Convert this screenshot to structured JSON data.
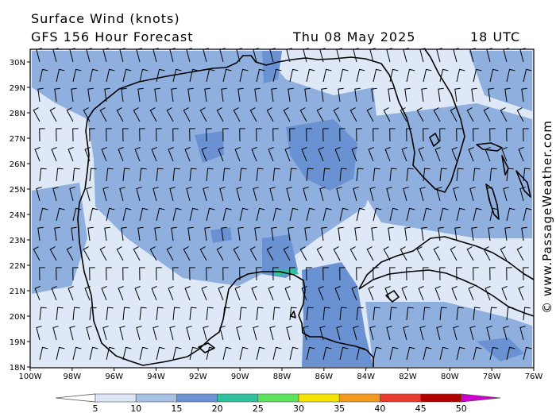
{
  "header": {
    "title": "Surface Wind (knots)",
    "subtitle": "GFS 156 Hour Forecast",
    "valid_date": "Thu 08 May 2025",
    "valid_time": "18 UTC"
  },
  "credit": "© www.PassageWeather.com",
  "map": {
    "lat_labels": [
      "30N",
      "29N",
      "28N",
      "27N",
      "26N",
      "25N",
      "24N",
      "23N",
      "22N",
      "21N",
      "20N",
      "19N",
      "18N"
    ],
    "lon_labels": [
      "100W",
      "98W",
      "96W",
      "94W",
      "92W",
      "90W",
      "88W",
      "86W",
      "84W",
      "82W",
      "80W",
      "78W",
      "76W"
    ],
    "colors": {
      "background": "#dfe8f6",
      "land": "#a9c4e6",
      "mid": "#8fb0df",
      "strong": "#6a92d3",
      "coast": "#000000",
      "barbs": "#000000"
    }
  },
  "legend": {
    "ticks": [
      "5",
      "10",
      "15",
      "20",
      "25",
      "30",
      "35",
      "40",
      "45",
      "50"
    ],
    "bins": [
      {
        "label": "below 5",
        "color": "#ffffff"
      },
      {
        "label": "5-10",
        "color": "#dce6f5"
      },
      {
        "label": "10-15",
        "color": "#a8c1e6"
      },
      {
        "label": "15-20",
        "color": "#6b93d3"
      },
      {
        "label": "20-25",
        "color": "#30c1a0"
      },
      {
        "label": "25-30",
        "color": "#5ee35e"
      },
      {
        "label": "30-35",
        "color": "#f4e400"
      },
      {
        "label": "35-40",
        "color": "#f39a1c"
      },
      {
        "label": "40-45",
        "color": "#e83a2e"
      },
      {
        "label": "45-50",
        "color": "#b20000"
      },
      {
        "label": "50+",
        "color": "#d000d0"
      }
    ]
  }
}
